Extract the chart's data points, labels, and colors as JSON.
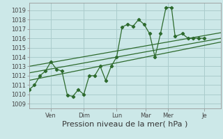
{
  "background_color": "#cce8e8",
  "grid_color": "#aacccc",
  "line_color": "#2d6a2d",
  "xlabel": "Pression niveau de la mer( hPa )",
  "ylim": [
    1008.5,
    1019.8
  ],
  "yticks": [
    1009,
    1010,
    1011,
    1012,
    1013,
    1014,
    1015,
    1016,
    1017,
    1018,
    1019
  ],
  "x_day_labels": [
    "Ven",
    "Dim",
    "Lun",
    "Mar",
    "Mer",
    "Je"
  ],
  "x_day_positions": [
    24,
    60,
    96,
    128,
    152,
    192
  ],
  "xlim": [
    0,
    210
  ],
  "main_series_x": [
    0,
    6,
    12,
    18,
    24,
    30,
    36,
    42,
    48,
    54,
    60,
    66,
    72,
    78,
    84,
    90,
    96,
    102,
    108,
    114,
    120,
    126,
    132,
    138,
    144,
    150,
    156,
    160,
    168,
    174,
    180,
    186,
    192
  ],
  "main_series_y": [
    1010.5,
    1011.0,
    1012.0,
    1012.5,
    1013.5,
    1012.7,
    1012.5,
    1009.9,
    1009.8,
    1010.5,
    1010.0,
    1012.0,
    1012.0,
    1013.0,
    1011.5,
    1013.0,
    1014.0,
    1017.2,
    1017.5,
    1017.3,
    1018.0,
    1017.5,
    1016.5,
    1014.0,
    1016.5,
    1019.3,
    1019.3,
    1016.2,
    1016.5,
    1016.0,
    1016.0,
    1016.0,
    1016.0
  ],
  "trend1_x": [
    0,
    210
  ],
  "trend1_y": [
    1011.5,
    1015.6
  ],
  "trend2_x": [
    0,
    210
  ],
  "trend2_y": [
    1012.3,
    1016.0
  ],
  "trend3_x": [
    0,
    210
  ],
  "trend3_y": [
    1013.0,
    1016.6
  ],
  "tick_label_fontsize": 6,
  "xlabel_fontsize": 8
}
